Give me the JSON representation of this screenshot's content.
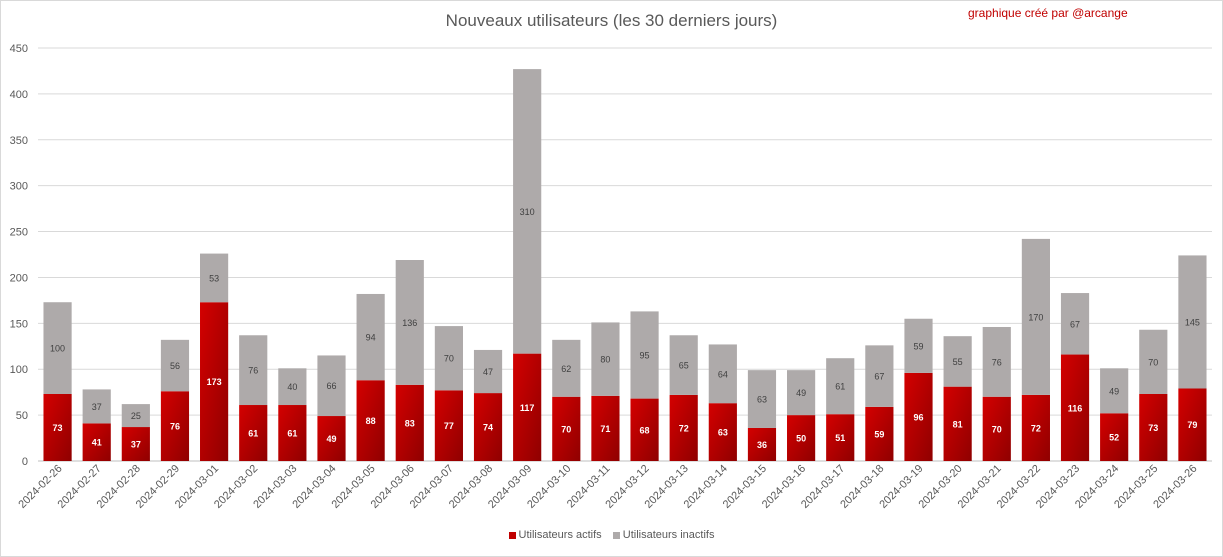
{
  "header": {
    "title": "Nouveaux utilisateurs  (les 30 derniers  jours)",
    "credit": "graphique créé par @arcange"
  },
  "legend": {
    "position": "bottom",
    "active_label": "Utilisateurs actifs",
    "inactive_label": "Utilisateurs inactifs"
  },
  "chart_data": {
    "type": "bar",
    "stacked": true,
    "title": "Nouveaux utilisateurs  (les 30 derniers  jours)",
    "xlabel": "",
    "ylabel": "",
    "ylim": [
      0,
      450
    ],
    "yticks": [
      0,
      50,
      100,
      150,
      200,
      250,
      300,
      350,
      400,
      450
    ],
    "grid": true,
    "legend_position": "bottom",
    "categories": [
      "2024-02-26",
      "2024-02-27",
      "2024-02-28",
      "2024-02-29",
      "2024-03-01",
      "2024-03-02",
      "2024-03-03",
      "2024-03-04",
      "2024-03-05",
      "2024-03-06",
      "2024-03-07",
      "2024-03-08",
      "2024-03-09",
      "2024-03-10",
      "2024-03-11",
      "2024-03-12",
      "2024-03-13",
      "2024-03-14",
      "2024-03-15",
      "2024-03-16",
      "2024-03-17",
      "2024-03-18",
      "2024-03-19",
      "2024-03-20",
      "2024-03-21",
      "2024-03-22",
      "2024-03-23",
      "2024-03-24",
      "2024-03-25",
      "2024-03-26"
    ],
    "series": [
      {
        "name": "Utilisateurs actifs",
        "color": "#c00000",
        "values": [
          73,
          41,
          37,
          76,
          173,
          61,
          61,
          49,
          88,
          83,
          77,
          74,
          117,
          70,
          71,
          68,
          72,
          63,
          36,
          50,
          51,
          59,
          96,
          81,
          70,
          72,
          116,
          52,
          73,
          79
        ]
      },
      {
        "name": "Utilisateurs inactifs",
        "color": "#aeaaaa",
        "values": [
          100,
          37,
          25,
          56,
          53,
          76,
          40,
          66,
          94,
          136,
          70,
          47,
          310,
          62,
          80,
          95,
          65,
          64,
          63,
          49,
          61,
          67,
          59,
          55,
          76,
          170,
          67,
          49,
          70,
          145
        ]
      }
    ]
  }
}
